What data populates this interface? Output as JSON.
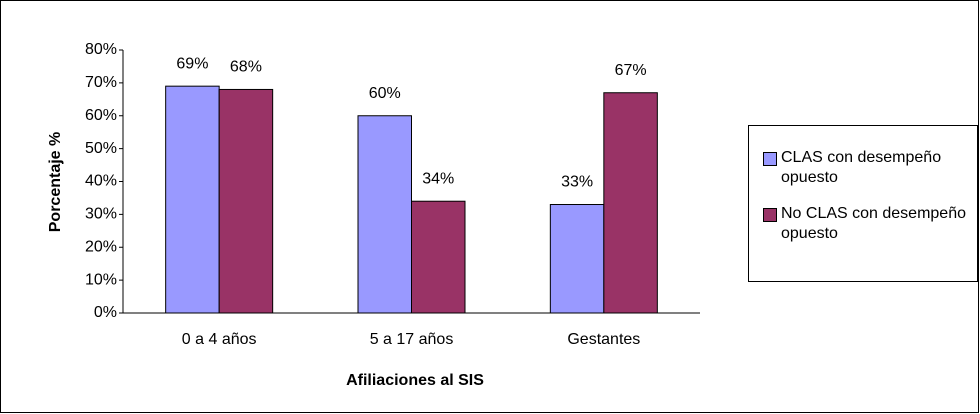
{
  "chart_data": {
    "type": "bar",
    "xlabel": "Afiliaciones al SIS",
    "ylabel": "Porcentaje %",
    "categories": [
      "0 a 4 años",
      "5 a 17 años",
      "Gestantes"
    ],
    "series": [
      {
        "name": "CLAS con desempeño opuesto",
        "color": "#9999ff",
        "values": [
          69,
          60,
          33
        ],
        "value_labels": [
          "69%",
          "60%",
          "33%"
        ]
      },
      {
        "name": "No CLAS con desempeño opuesto",
        "color": "#993366",
        "values": [
          68,
          34,
          67
        ],
        "value_labels": [
          "68%",
          "34%",
          "67%"
        ]
      }
    ],
    "ylim": [
      0,
      80
    ],
    "yticks": [
      {
        "value": 0,
        "label": "0%"
      },
      {
        "value": 10,
        "label": "10%"
      },
      {
        "value": 20,
        "label": "20%"
      },
      {
        "value": 30,
        "label": "30%"
      },
      {
        "value": 40,
        "label": "40%"
      },
      {
        "value": 50,
        "label": "50%"
      },
      {
        "value": 60,
        "label": "60%"
      },
      {
        "value": 70,
        "label": "70%"
      },
      {
        "value": 80,
        "label": "80%"
      }
    ],
    "grid": false,
    "legend": "right"
  }
}
